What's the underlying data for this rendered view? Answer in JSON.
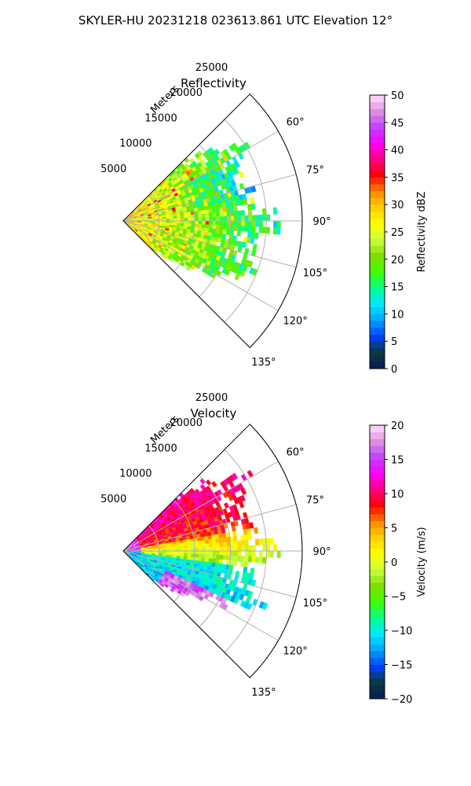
{
  "figure_title": "SKYLER-HU  20231218  023613.861 UTC Elevation 12°",
  "chart_data": [
    {
      "type": "heatmap",
      "subtype": "polar-sector",
      "title": "Reflectivity",
      "radial_label": "Meters",
      "radial_ticks": [
        5000,
        10000,
        15000,
        20000,
        25000
      ],
      "radial_tick_labels": [
        "5000",
        "10000",
        "15000",
        "20000",
        "25000"
      ],
      "rlim": [
        0,
        25000
      ],
      "angle_ticks": [
        60,
        75,
        90,
        105,
        120,
        135
      ],
      "angle_tick_labels": [
        "60°",
        "75°",
        "90°",
        "105°",
        "120°",
        "135°"
      ],
      "angle_range_deg": [
        45,
        135
      ],
      "grid": true,
      "colorbar": {
        "label": "Reflectivity dBZ",
        "ticks": [
          0,
          5,
          10,
          15,
          20,
          25,
          30,
          35,
          40,
          45,
          50
        ],
        "tick_labels": [
          "0",
          "5",
          "10",
          "15",
          "20",
          "25",
          "30",
          "35",
          "40",
          "45",
          "50"
        ],
        "range": [
          0,
          50
        ],
        "colormap": "radar-reflectivity",
        "colors": [
          "#0a1a5c",
          "#0a3a3a",
          "#0040ff",
          "#00a0ff",
          "#00e8ff",
          "#00ff90",
          "#3fff00",
          "#7fdd00",
          "#c8ff40",
          "#ffff00",
          "#ffd000",
          "#ff8800",
          "#ff0000",
          "#ff0080",
          "#ff00ff",
          "#c040ff",
          "#e090e0",
          "#ffe0ff"
        ]
      },
      "field_description_values": {
        "near_range_dbz": 28,
        "mid_range_dbz": 25,
        "far_range_dbz": 18,
        "max_extent_m": 22000
      }
    },
    {
      "type": "heatmap",
      "subtype": "polar-sector",
      "title": "Velocity",
      "radial_label": "Meters",
      "radial_ticks": [
        5000,
        10000,
        15000,
        20000,
        25000
      ],
      "radial_tick_labels": [
        "5000",
        "10000",
        "15000",
        "20000",
        "25000"
      ],
      "rlim": [
        0,
        25000
      ],
      "angle_ticks": [
        60,
        75,
        90,
        105,
        120,
        135
      ],
      "angle_tick_labels": [
        "60°",
        "75°",
        "90°",
        "105°",
        "120°",
        "135°"
      ],
      "angle_range_deg": [
        45,
        135
      ],
      "grid": true,
      "colorbar": {
        "label": "Velocity (m/s)",
        "ticks": [
          -20,
          -15,
          -10,
          -5,
          0,
          5,
          10,
          15,
          20
        ],
        "tick_labels": [
          "−20",
          "−15",
          "−10",
          "−5",
          "0",
          "5",
          "10",
          "15",
          "20"
        ],
        "range": [
          -20,
          20
        ],
        "colormap": "radar-velocity",
        "colors": [
          "#0a1a5c",
          "#0a3a3a",
          "#0040ff",
          "#00a0ff",
          "#00e8ff",
          "#00ff90",
          "#3fff00",
          "#7fdd00",
          "#c8ff40",
          "#ffff00",
          "#ffd000",
          "#ff8800",
          "#ff0000",
          "#ff0080",
          "#ff00ff",
          "#c040ff",
          "#e090e0",
          "#ffe0ff"
        ]
      },
      "field_description_values": {
        "north_sector_ms": 11,
        "center_ms": 1,
        "south_sector_ms": -10,
        "far_south_ms": 16,
        "max_extent_m": 22000
      }
    }
  ]
}
